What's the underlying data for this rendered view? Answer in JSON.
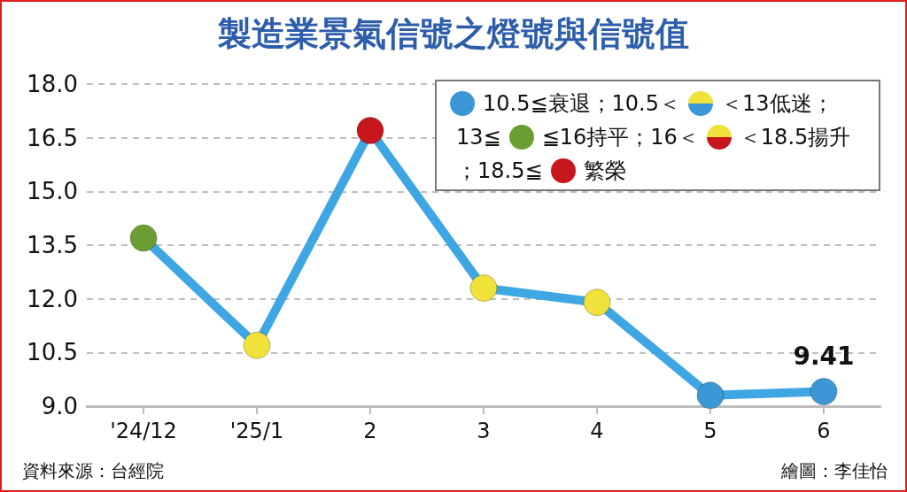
{
  "chart_data": {
    "type": "line",
    "title": "製造業景氣信號之燈號與信號值",
    "categories": [
      "'24/12",
      "'25/1",
      "2",
      "3",
      "4",
      "5",
      "6"
    ],
    "series": [
      {
        "color": "#3ea6e2",
        "colors": [
          "#6b9e32",
          "#f0e23a",
          "#c8161d",
          "#f0e23a",
          "#f0e23a",
          "#3b97d6",
          "#3b97d6"
        ],
        "values": [
          13.7,
          10.7,
          16.7,
          12.3,
          11.9,
          9.3,
          9.41
        ],
        "value_labels": [
          null,
          null,
          null,
          null,
          null,
          null,
          "9.41"
        ]
      }
    ],
    "ylim": [
      9,
      18
    ],
    "yticks": [
      {
        "value": 9,
        "label": "9.0"
      },
      10.5,
      {
        "value": 12,
        "label": "12.0"
      },
      13.5,
      {
        "value": 15,
        "label": "15.0"
      },
      16.5,
      {
        "value": 18,
        "label": "18.0"
      }
    ],
    "grid": "y",
    "marker": "circle",
    "line_style": "solid",
    "annotations": [
      "10.5≦衰退；10.5＜",
      "＜13低迷；",
      "13≦",
      "≦16持平；16＜",
      "＜18.5揚升",
      "；18.5≦",
      "繁榮",
      "資料來源：台經院",
      "繪圖：李佳怡"
    ]
  }
}
